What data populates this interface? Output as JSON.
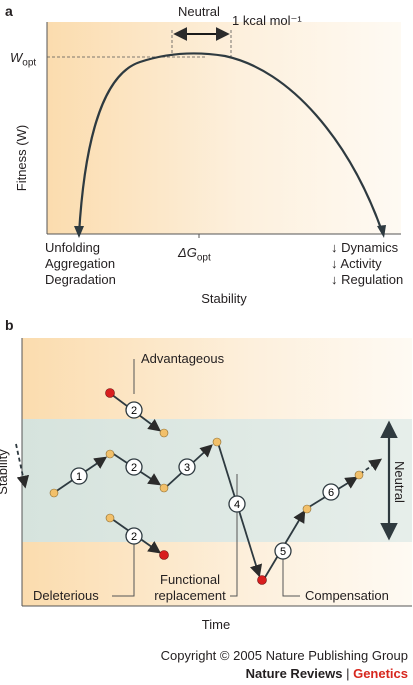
{
  "panel_a": {
    "label": "a",
    "y_axis_label": "Fitness (W)",
    "w_opt_label": "W",
    "w_opt_sub": "opt",
    "neutral_label": "Neutral",
    "kcal_label": "1 kcal mol⁻¹",
    "left_effects": [
      "Unfolding",
      "Aggregation",
      "Degradation"
    ],
    "delta_g_label": "ΔG",
    "delta_g_sub": "opt",
    "right_effects": [
      "↓ Dynamics",
      "↓ Activity",
      "↓ Regulation"
    ],
    "x_axis_label": "Stability"
  },
  "panel_b": {
    "label": "b",
    "y_axis_label": "Stability",
    "x_axis_label": "Time",
    "advantageous_label": "Advantageous",
    "deleterious_label": "Deleterious",
    "functional_label_1": "Functional",
    "functional_label_2": "replacement",
    "compensation_label": "Compensation",
    "neutral_label": "Neutral",
    "steps": [
      "1",
      "2",
      "2",
      "2",
      "3",
      "4",
      "5",
      "6"
    ],
    "colors": {
      "neutral_band": "#dfe8e3",
      "background": "#fbe3c3",
      "neutral_point": "#f2c06a",
      "deleterious_point": "#d81e1e"
    }
  },
  "footer": {
    "copyright": "Copyright © 2005 Nature Publishing Group",
    "brand_1": "Nature Reviews",
    "separator": " | ",
    "brand_2": "Genetics"
  }
}
